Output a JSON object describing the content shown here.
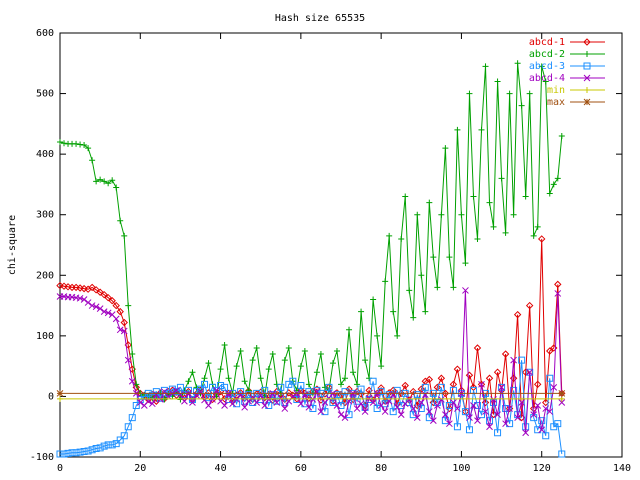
{
  "chart_data": {
    "type": "line",
    "title": "Hash size 65535",
    "ylabel": "chi-square",
    "x": [
      0,
      1,
      2,
      3,
      4,
      5,
      6,
      7,
      8,
      9,
      10,
      11,
      12,
      13,
      14,
      15,
      16,
      17,
      18,
      19,
      20,
      21,
      22,
      23,
      24,
      25,
      26,
      27,
      28,
      29,
      30,
      31,
      32,
      33,
      34,
      35,
      36,
      37,
      38,
      39,
      40,
      41,
      42,
      43,
      44,
      45,
      46,
      47,
      48,
      49,
      50,
      51,
      52,
      53,
      54,
      55,
      56,
      57,
      58,
      59,
      60,
      61,
      62,
      63,
      64,
      65,
      66,
      67,
      68,
      69,
      70,
      71,
      72,
      73,
      74,
      75,
      76,
      77,
      78,
      79,
      80,
      81,
      82,
      83,
      84,
      85,
      86,
      87,
      88,
      89,
      90,
      91,
      92,
      93,
      94,
      95,
      96,
      97,
      98,
      99,
      100,
      101,
      102,
      103,
      104,
      105,
      106,
      107,
      108,
      109,
      110,
      111,
      112,
      113,
      114,
      115,
      116,
      117,
      118,
      119,
      120,
      121,
      122,
      123,
      124,
      125
    ],
    "series": [
      {
        "name": "abcd-1",
        "color": "#e00000",
        "marker": "diamond",
        "values": [
          183,
          182,
          181,
          180,
          180,
          179,
          178,
          177,
          180,
          176,
          172,
          168,
          163,
          158,
          150,
          140,
          122,
          85,
          45,
          15,
          5,
          2,
          -5,
          3,
          -8,
          6,
          -4,
          8,
          10,
          2,
          5,
          -3,
          8,
          -6,
          4,
          10,
          -2,
          6,
          -5,
          3,
          8,
          -4,
          5,
          -8,
          2,
          6,
          -3,
          9,
          -5,
          4,
          7,
          -2,
          3,
          -6,
          8,
          4,
          -5,
          6,
          2,
          -4,
          10,
          5,
          -3,
          8,
          12,
          -6,
          4,
          15,
          -8,
          6,
          3,
          -10,
          12,
          -5,
          8,
          4,
          -15,
          10,
          -6,
          5,
          14,
          -8,
          6,
          10,
          -12,
          5,
          18,
          -6,
          8,
          -15,
          12,
          25,
          28,
          -10,
          15,
          30,
          5,
          -20,
          20,
          45,
          10,
          -25,
          35,
          15,
          80,
          20,
          -10,
          30,
          -30,
          40,
          10,
          70,
          -20,
          30,
          135,
          -35,
          40,
          150,
          -20,
          20,
          260,
          -10,
          75,
          80,
          185,
          5
        ]
      },
      {
        "name": "abcd-2",
        "color": "#00a000",
        "marker": "plus",
        "values": [
          420,
          418,
          417,
          417,
          417,
          416,
          415,
          410,
          390,
          355,
          358,
          355,
          352,
          357,
          345,
          290,
          265,
          150,
          70,
          20,
          5,
          2,
          0,
          -3,
          2,
          5,
          -5,
          3,
          0,
          8,
          -5,
          10,
          25,
          40,
          15,
          5,
          30,
          55,
          20,
          0,
          45,
          85,
          30,
          5,
          50,
          75,
          25,
          10,
          60,
          80,
          30,
          0,
          45,
          70,
          20,
          5,
          60,
          80,
          25,
          10,
          50,
          75,
          20,
          5,
          40,
          70,
          15,
          10,
          55,
          75,
          20,
          30,
          110,
          40,
          20,
          140,
          60,
          30,
          160,
          100,
          50,
          190,
          265,
          140,
          100,
          260,
          330,
          175,
          130,
          300,
          200,
          140,
          320,
          230,
          180,
          300,
          410,
          230,
          180,
          440,
          300,
          220,
          500,
          330,
          260,
          440,
          545,
          320,
          280,
          520,
          360,
          270,
          500,
          300,
          550,
          480,
          330,
          500,
          265,
          280,
          545,
          520,
          335,
          350,
          360,
          430
        ]
      },
      {
        "name": "abcd-3",
        "color": "#1e90ff",
        "marker": "square",
        "values": [
          -95,
          -95,
          -94,
          -93,
          -93,
          -92,
          -91,
          -90,
          -88,
          -86,
          -85,
          -82,
          -80,
          -80,
          -78,
          -72,
          -65,
          -50,
          -35,
          -15,
          -5,
          0,
          5,
          2,
          8,
          -3,
          10,
          5,
          12,
          8,
          15,
          3,
          10,
          -5,
          8,
          12,
          20,
          -2,
          15,
          10,
          18,
          15,
          -5,
          5,
          -12,
          8,
          -8,
          3,
          -10,
          5,
          -5,
          10,
          -15,
          3,
          -8,
          15,
          -10,
          20,
          25,
          -5,
          18,
          -12,
          8,
          -20,
          10,
          5,
          -25,
          15,
          -10,
          3,
          -15,
          8,
          -30,
          5,
          -8,
          12,
          -18,
          -5,
          25,
          -20,
          8,
          -12,
          3,
          -25,
          10,
          -15,
          5,
          -10,
          -30,
          3,
          -20,
          15,
          -35,
          5,
          -10,
          15,
          -40,
          -15,
          10,
          -50,
          5,
          -25,
          -55,
          10,
          -15,
          -30,
          5,
          -40,
          -10,
          -60,
          15,
          -20,
          -45,
          10,
          -30,
          60,
          -50,
          40,
          -35,
          -55,
          -40,
          -65,
          30,
          -50,
          -45,
          -95
        ]
      },
      {
        "name": "abcd-4",
        "color": "#a000c0",
        "marker": "cross",
        "values": [
          165,
          165,
          164,
          164,
          163,
          162,
          160,
          155,
          150,
          148,
          145,
          140,
          138,
          135,
          128,
          110,
          108,
          60,
          25,
          5,
          -10,
          -15,
          -8,
          -12,
          3,
          -5,
          8,
          0,
          5,
          10,
          3,
          -8,
          5,
          -10,
          2,
          8,
          -6,
          -15,
          -5,
          10,
          -8,
          -15,
          5,
          -12,
          -5,
          3,
          -18,
          -8,
          -3,
          -10,
          2,
          -15,
          -5,
          5,
          -10,
          -3,
          -20,
          -8,
          0,
          5,
          -12,
          3,
          -18,
          -5,
          8,
          -25,
          -10,
          -3,
          5,
          -15,
          -30,
          -35,
          -8,
          5,
          -20,
          -12,
          -25,
          -3,
          -10,
          5,
          -15,
          -25,
          -8,
          3,
          -18,
          -30,
          -12,
          -5,
          -20,
          -35,
          -10,
          3,
          -25,
          -40,
          -15,
          -5,
          -30,
          -45,
          -10,
          -20,
          5,
          175,
          -35,
          -15,
          -40,
          20,
          -25,
          -50,
          -5,
          -30,
          15,
          -45,
          -20,
          60,
          -35,
          -10,
          -60,
          40,
          -30,
          -15,
          -55,
          -20,
          -25,
          15,
          170,
          -10
        ]
      },
      {
        "name": "min",
        "color": "#c8c800",
        "marker": "plus",
        "x": [
          0,
          125
        ],
        "values": [
          -4,
          -4
        ]
      },
      {
        "name": "max",
        "color": "#a05010",
        "marker": "star",
        "x": [
          0,
          125
        ],
        "values": [
          5,
          5
        ]
      }
    ],
    "xlim": [
      0,
      140
    ],
    "xticks": [
      0,
      20,
      40,
      60,
      80,
      100,
      120,
      140
    ],
    "ylim": [
      -100,
      600
    ],
    "yticks": [
      -100,
      0,
      100,
      200,
      300,
      400,
      500,
      600
    ],
    "grid": false,
    "legend": "top-right"
  }
}
